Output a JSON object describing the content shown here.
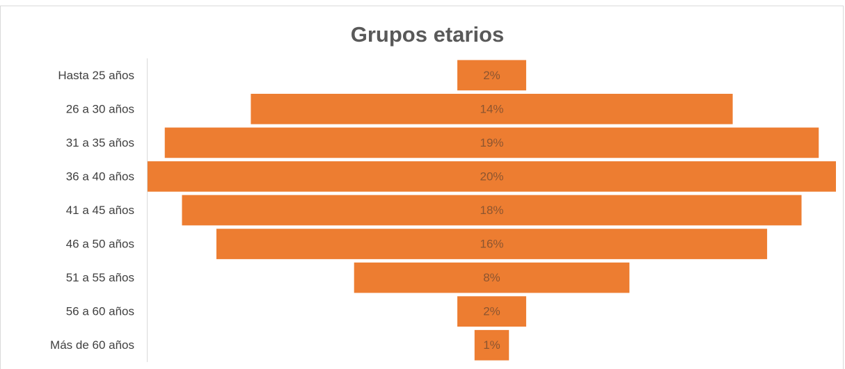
{
  "chart_data": {
    "type": "funnel",
    "title": "Grupos etarios",
    "categories": [
      "Hasta 25 años",
      "26 a 30 años",
      "31 a 35 años",
      "36 a 40 años",
      "41 a 45 años",
      "46 a 50 años",
      "51 a 55 años",
      "56 a 60 años",
      "Más de 60 años"
    ],
    "values": [
      2,
      14,
      19,
      20,
      18,
      16,
      8,
      2,
      1
    ],
    "value_labels": [
      "2%",
      "14%",
      "19%",
      "20%",
      "18%",
      "16%",
      "8%",
      "2%",
      "1%"
    ],
    "color": "#ed7d31"
  }
}
